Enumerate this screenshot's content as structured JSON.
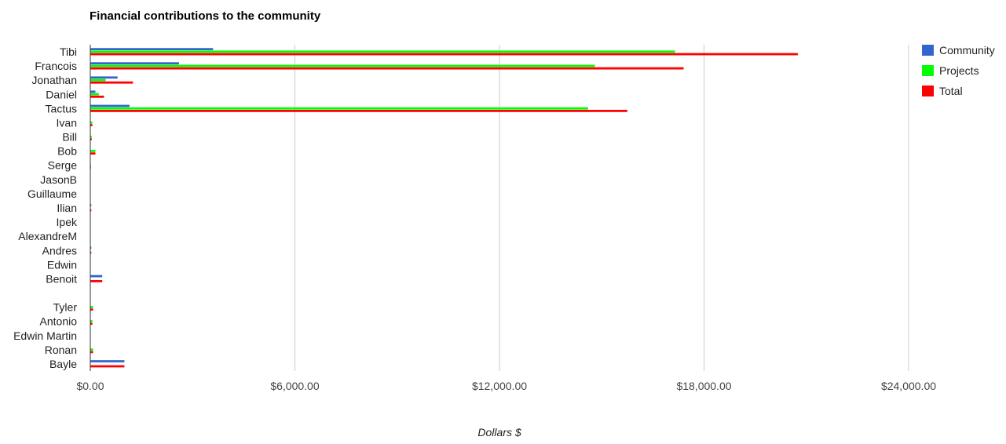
{
  "chart_data": {
    "type": "bar",
    "orientation": "horizontal",
    "title": "Financial contributions to the community",
    "xlabel": "Dollars $",
    "ylabel": "",
    "xlim": [
      0,
      24000
    ],
    "x_ticks": [
      0,
      6000,
      12000,
      18000,
      24000
    ],
    "x_tick_labels": [
      "$0.00",
      "$6,000.00",
      "$12,000.00",
      "$18,000.00",
      "$24,000.00"
    ],
    "grid": true,
    "legend_position": "right",
    "categories": [
      "Tibi",
      "Francois",
      "Jonathan",
      "Daniel",
      "Tactus",
      "Ivan",
      "Bill",
      "Bob",
      "Serge",
      "JasonB",
      "Guillaume",
      "Ilian",
      "Ipek",
      "AlexandreM",
      "Andres",
      "Edwin",
      "Benoit",
      "",
      "Tyler",
      "Antonio",
      "Edwin Martin",
      "Ronan",
      "Bayle"
    ],
    "series": [
      {
        "name": "Community",
        "color": "#3366cc",
        "values": [
          3600,
          2600,
          800,
          150,
          1150,
          0,
          0,
          0,
          0,
          0,
          0,
          30,
          0,
          0,
          30,
          0,
          350,
          0,
          0,
          0,
          0,
          0,
          1000
        ]
      },
      {
        "name": "Projects",
        "color": "#00ff00",
        "values": [
          17150,
          14800,
          450,
          250,
          14600,
          60,
          40,
          150,
          20,
          0,
          0,
          0,
          0,
          0,
          0,
          0,
          0,
          0,
          80,
          60,
          0,
          80,
          0
        ]
      },
      {
        "name": "Total",
        "color": "#ff0000",
        "values": [
          20750,
          17400,
          1250,
          400,
          15750,
          60,
          40,
          150,
          20,
          0,
          0,
          30,
          0,
          0,
          30,
          0,
          350,
          0,
          80,
          60,
          0,
          80,
          1000
        ]
      }
    ]
  }
}
